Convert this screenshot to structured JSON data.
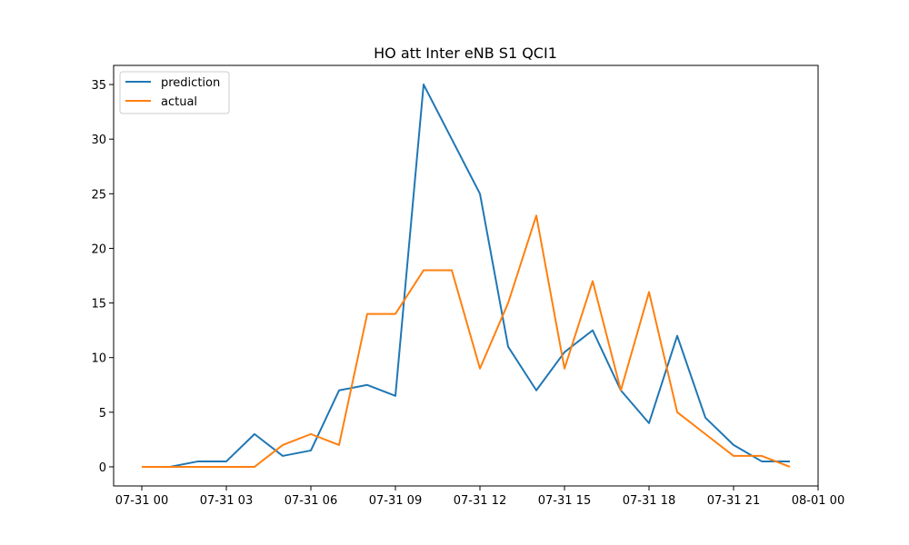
{
  "chart_data": {
    "type": "line",
    "title": "HO att Inter eNB S1 QCI1",
    "xlabel": "",
    "ylabel": "",
    "x": [
      "07-31 00",
      "07-31 01",
      "07-31 02",
      "07-31 03",
      "07-31 04",
      "07-31 05",
      "07-31 06",
      "07-31 07",
      "07-31 08",
      "07-31 09",
      "07-31 10",
      "07-31 11",
      "07-31 12",
      "07-31 13",
      "07-31 14",
      "07-31 15",
      "07-31 16",
      "07-31 17",
      "07-31 18",
      "07-31 19",
      "07-31 20",
      "07-31 21",
      "07-31 22",
      "07-31 23"
    ],
    "x_tick_labels": [
      "07-31 00",
      "07-31 03",
      "07-31 06",
      "07-31 09",
      "07-31 12",
      "07-31 15",
      "07-31 18",
      "07-31 21",
      "08-01 00"
    ],
    "xlim": [
      "07-30 23:00",
      "08-01 00:00"
    ],
    "ylim": [
      -1.75,
      36.75
    ],
    "y_ticks": [
      0,
      5,
      10,
      15,
      20,
      25,
      30,
      35
    ],
    "grid": false,
    "legend_position": "top-left",
    "series": [
      {
        "name": "prediction",
        "color": "#1f77b4",
        "values": [
          0,
          0,
          0.5,
          0.5,
          3,
          1,
          1.5,
          7,
          7.5,
          6.5,
          35,
          30,
          25,
          11,
          7,
          10.5,
          12.5,
          7,
          4,
          12,
          4.5,
          2,
          0.5,
          0.5
        ]
      },
      {
        "name": "actual",
        "color": "#ff7f0e",
        "values": [
          0,
          0,
          0,
          0,
          0,
          2,
          3,
          2,
          14,
          14,
          18,
          18,
          9,
          15,
          23,
          9,
          17,
          7,
          16,
          5,
          3,
          1,
          1,
          0
        ]
      }
    ]
  }
}
